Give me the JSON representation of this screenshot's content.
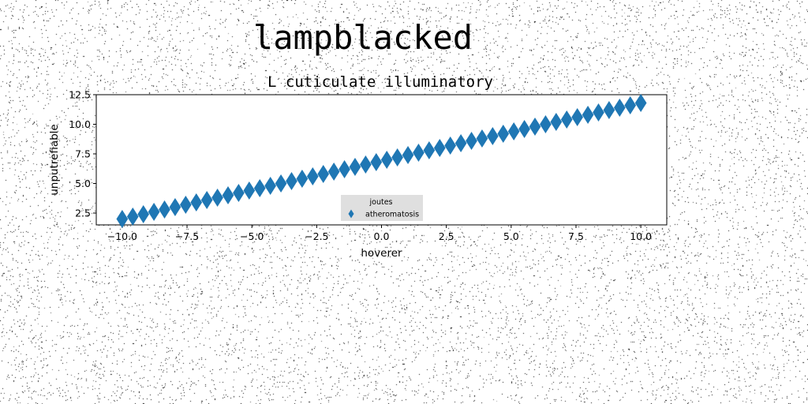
{
  "page": {
    "suptitle": "lampblacked"
  },
  "chart_data": {
    "type": "scatter",
    "title": "L cuticulate illuminatory",
    "xlabel": "hoverer",
    "ylabel": "unputrefiable",
    "xlim": [
      -11.0,
      11.0
    ],
    "ylim": [
      1.5,
      12.5
    ],
    "xticks": [
      -10.0,
      -7.5,
      -5.0,
      -2.5,
      0.0,
      2.5,
      5.0,
      7.5,
      10.0
    ],
    "yticks": [
      2.5,
      5.0,
      7.5,
      10.0,
      12.5
    ],
    "grid": false,
    "marker": "diamond",
    "legend": {
      "title": "joutes",
      "placement": "lower-center"
    },
    "series": [
      {
        "name": "atheromatosis",
        "color": "#1f77b4",
        "x": [
          -10.0,
          -9.5918,
          -9.1837,
          -8.7755,
          -8.3673,
          -7.9592,
          -7.551,
          -7.1429,
          -6.7347,
          -6.3265,
          -5.9184,
          -5.5102,
          -5.102,
          -4.6939,
          -4.2857,
          -3.8776,
          -3.4694,
          -3.0612,
          -2.6531,
          -2.2449,
          -1.8367,
          -1.4286,
          -1.0204,
          -0.6122,
          -0.2041,
          0.2041,
          0.6122,
          1.0204,
          1.4286,
          1.8367,
          2.2449,
          2.6531,
          3.0612,
          3.4694,
          3.8776,
          4.2857,
          4.6939,
          5.102,
          5.5102,
          5.9184,
          6.3265,
          6.7347,
          7.1429,
          7.551,
          7.9592,
          8.3673,
          8.7755,
          9.1837,
          9.5918,
          10.0
        ],
        "y": [
          2.0,
          2.2,
          2.4,
          2.6,
          2.8,
          3.0,
          3.2,
          3.4,
          3.6,
          3.8,
          4.0,
          4.2,
          4.4,
          4.6,
          4.8,
          5.0,
          5.2,
          5.4,
          5.6,
          5.8,
          6.0,
          6.2,
          6.4,
          6.6,
          6.8,
          7.0,
          7.2,
          7.4,
          7.6,
          7.8,
          8.0,
          8.2,
          8.4,
          8.6,
          8.8,
          9.0,
          9.2,
          9.4,
          9.6,
          9.8,
          10.0,
          10.2,
          10.4,
          10.6,
          10.8,
          11.0,
          11.2,
          11.4,
          11.6,
          11.8
        ]
      }
    ]
  }
}
